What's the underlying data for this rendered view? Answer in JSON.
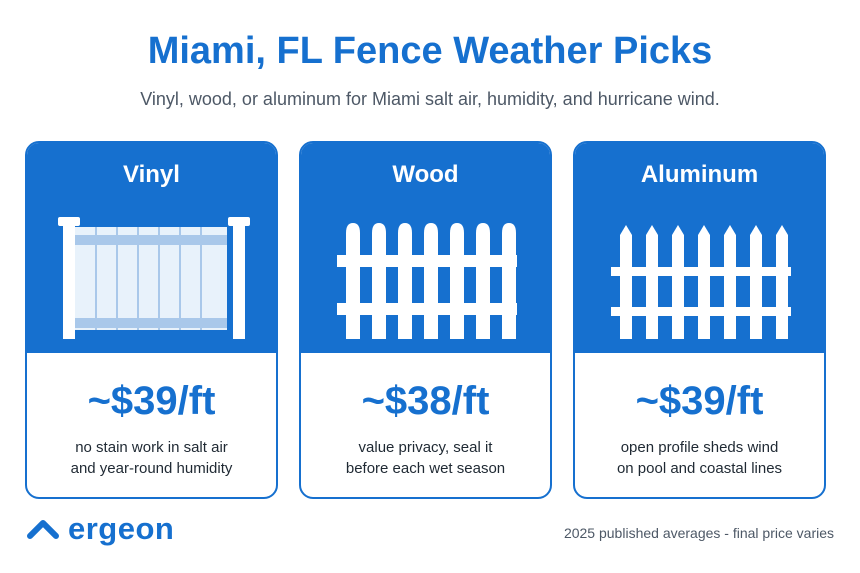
{
  "header": {
    "title": "Miami, FL Fence Weather Picks",
    "subtitle": "Vinyl, wood, or aluminum for Miami salt air, humidity, and hurricane wind."
  },
  "cards": [
    {
      "name": "Vinyl",
      "price": "~$39/ft",
      "note_line1": "no stain work in salt air",
      "note_line2": "and year-round humidity",
      "icon": "vinyl-fence-icon"
    },
    {
      "name": "Wood",
      "price": "~$38/ft",
      "note_line1": "value privacy, seal it",
      "note_line2": "before each wet season",
      "icon": "wood-picket-fence-icon"
    },
    {
      "name": "Aluminum",
      "price": "~$39/ft",
      "note_line1": "open profile sheds wind",
      "note_line2": "on pool and coastal lines",
      "icon": "aluminum-spear-fence-icon"
    }
  ],
  "footer": {
    "logo_text": "ergeon",
    "logo_icon": "ergeon-roof-icon",
    "footnote": "2025 published averages - final price varies"
  },
  "colors": {
    "accent": "#1670cf",
    "white": "#ffffff",
    "text_dark": "#1f2933",
    "text_muted": "#4d5866",
    "vinyl_panel_light": "#e8f2fb",
    "vinyl_panel_stripe": "#a9c8ea"
  }
}
